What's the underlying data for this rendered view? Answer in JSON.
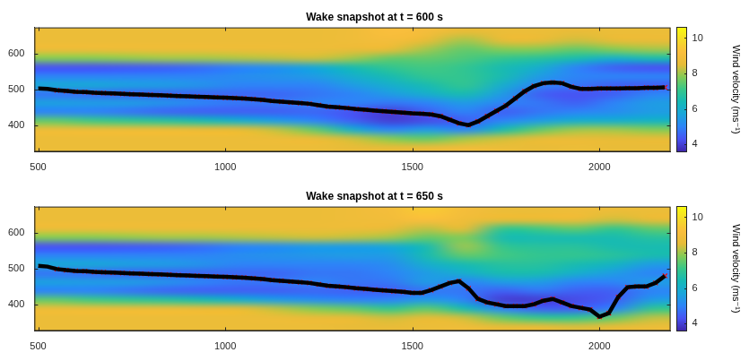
{
  "chart_data": [
    {
      "type": "heatmap",
      "title": "Wake snapshot at t = 600 s",
      "xlim": [
        490,
        2190
      ],
      "xticks": [
        500,
        1000,
        1500,
        2000
      ],
      "ylim": [
        325,
        675
      ],
      "yticks": [
        400,
        500,
        600
      ],
      "grid": false,
      "heatmap": {
        "x": [
          490,
          590,
          690,
          790,
          890,
          990,
          1090,
          1190,
          1290,
          1390,
          1490,
          1590,
          1690,
          1790,
          1890,
          1990,
          2090,
          2190
        ],
        "y": [
          325,
          350,
          375,
          400,
          425,
          450,
          475,
          500,
          525,
          550,
          575,
          600,
          625,
          650,
          675
        ],
        "values": [
          [
            8.7,
            8.7,
            8.7,
            8.7,
            8.7,
            8.7,
            8.7,
            8.7,
            8.6,
            8.5,
            8.6,
            8.8,
            8.7,
            8.6,
            8.7,
            8.6,
            8.6
          ],
          [
            8.7,
            8.7,
            8.7,
            8.7,
            8.7,
            8.7,
            8.7,
            8.6,
            8.3,
            7.8,
            7.5,
            8.0,
            8.3,
            8.5,
            8.6,
            8.5,
            8.5
          ],
          [
            8.7,
            8.7,
            8.7,
            8.7,
            8.6,
            8.5,
            8.2,
            7.5,
            6.0,
            5.0,
            5.5,
            5.0,
            6.5,
            7.5,
            8.0,
            8.0,
            7.8
          ],
          [
            7.5,
            7.2,
            7.0,
            6.8,
            6.5,
            6.0,
            5.5,
            5.0,
            4.5,
            4.0,
            4.2,
            4.5,
            5.0,
            5.5,
            6.0,
            6.0,
            6.2
          ],
          [
            5.0,
            5.0,
            4.8,
            4.6,
            4.5,
            4.5,
            4.5,
            4.6,
            4.3,
            4.0,
            4.5,
            5.0,
            4.5,
            4.8,
            5.0,
            5.2,
            5.5
          ],
          [
            5.6,
            5.5,
            5.5,
            5.3,
            5.0,
            4.8,
            4.8,
            5.0,
            5.0,
            4.8,
            5.0,
            5.5,
            5.0,
            4.8,
            4.5,
            5.0,
            5.5
          ],
          [
            4.8,
            4.7,
            4.6,
            4.6,
            4.6,
            4.6,
            4.6,
            4.8,
            5.0,
            5.5,
            6.0,
            6.5,
            5.5,
            4.5,
            4.3,
            4.5,
            5.0
          ],
          [
            5.8,
            5.8,
            5.6,
            5.5,
            5.3,
            5.0,
            5.0,
            5.0,
            5.5,
            6.0,
            6.5,
            7.0,
            6.0,
            5.0,
            4.8,
            4.5,
            4.5
          ],
          [
            5.0,
            5.0,
            5.0,
            5.0,
            5.0,
            5.2,
            5.3,
            5.5,
            6.0,
            6.5,
            7.0,
            7.0,
            6.5,
            5.5,
            5.0,
            5.0,
            5.0
          ],
          [
            4.3,
            4.3,
            4.4,
            4.5,
            4.7,
            5.0,
            5.3,
            5.8,
            6.5,
            7.0,
            7.2,
            7.0,
            6.5,
            6.0,
            5.0,
            4.5,
            4.3
          ],
          [
            7.8,
            7.8,
            7.9,
            8.0,
            8.0,
            8.1,
            8.2,
            8.3,
            8.0,
            7.5,
            7.5,
            7.3,
            7.0,
            6.8,
            6.5,
            6.0,
            6.5
          ],
          [
            8.7,
            8.7,
            8.7,
            8.7,
            8.7,
            8.7,
            8.7,
            8.7,
            8.6,
            8.5,
            8.0,
            7.5,
            7.8,
            7.8,
            7.5,
            7.8,
            8.0
          ],
          [
            8.7,
            8.7,
            8.7,
            8.7,
            8.7,
            8.7,
            8.7,
            8.7,
            8.8,
            9.0,
            8.5,
            8.0,
            8.5,
            8.5,
            8.3,
            8.5,
            8.6
          ],
          [
            8.7,
            8.7,
            8.7,
            8.7,
            8.7,
            8.7,
            8.7,
            8.7,
            8.8,
            9.2,
            9.0,
            8.5,
            8.7,
            8.7,
            8.6,
            8.7,
            8.7
          ]
        ]
      },
      "colorbar": {
        "label": "Wind velocity (ms⁻¹)",
        "lim": [
          3.6,
          10.6
        ],
        "ticks": [
          4,
          6,
          8,
          10
        ]
      },
      "x": [
        500,
        525,
        550,
        575,
        600,
        625,
        650,
        675,
        700,
        725,
        750,
        775,
        800,
        825,
        850,
        875,
        900,
        925,
        950,
        975,
        1000,
        1025,
        1050,
        1075,
        1100,
        1125,
        1150,
        1175,
        1200,
        1225,
        1250,
        1275,
        1300,
        1325,
        1350,
        1375,
        1400,
        1425,
        1450,
        1475,
        1500,
        1525,
        1550,
        1575,
        1600,
        1625,
        1650,
        1675,
        1700,
        1725,
        1750,
        1775,
        1800,
        1825,
        1850,
        1875,
        1900,
        1925,
        1950,
        1975,
        2000,
        2025,
        2050,
        2075,
        2100,
        2125,
        2150,
        2175
      ],
      "series": [
        {
          "type": "line",
          "color": "#ffffff",
          "line_style": "solid",
          "values": [
            503,
            502,
            498,
            496,
            494,
            493,
            491,
            490,
            489,
            488,
            487,
            486,
            485,
            484,
            483,
            482,
            481,
            480,
            479,
            478,
            477,
            476,
            475,
            473,
            471,
            468,
            466,
            464,
            462,
            460,
            456,
            452,
            450,
            448,
            445,
            443,
            441,
            439,
            437,
            435,
            433,
            432,
            430,
            425,
            415,
            405,
            400,
            410,
            425,
            440,
            455,
            475,
            495,
            510,
            518,
            520,
            518,
            508,
            502,
            502,
            503,
            503,
            503,
            504,
            504,
            505,
            505,
            506
          ]
        },
        {
          "type": "scatter",
          "color": "#ff0000",
          "marker": "x",
          "line_style": "none",
          "values": [
            null,
            null,
            498,
            496,
            494,
            493,
            491,
            490,
            489,
            488,
            487,
            486,
            485,
            484,
            483,
            482,
            481,
            480,
            479,
            478,
            477,
            476,
            475,
            473,
            471,
            468,
            466,
            464,
            462,
            460,
            456,
            452,
            450,
            448,
            445,
            443,
            441,
            439,
            437,
            435,
            433,
            432,
            430,
            425,
            415,
            405,
            400,
            410,
            425,
            440,
            455,
            475,
            495,
            510,
            518,
            520,
            518,
            508,
            502,
            502,
            503,
            503,
            503,
            504,
            504,
            505,
            505,
            506
          ]
        }
      ]
    },
    {
      "type": "heatmap",
      "title": "Wake snapshot at t = 650 s",
      "xlim": [
        490,
        2190
      ],
      "xticks": [
        500,
        1000,
        1500,
        2000
      ],
      "ylim": [
        325,
        675
      ],
      "yticks": [
        400,
        500,
        600
      ],
      "grid": false,
      "heatmap": {
        "x": [
          490,
          590,
          690,
          790,
          890,
          990,
          1090,
          1190,
          1290,
          1390,
          1490,
          1590,
          1690,
          1790,
          1890,
          1990,
          2090,
          2190
        ],
        "y": [
          325,
          350,
          375,
          400,
          425,
          450,
          475,
          500,
          525,
          550,
          575,
          600,
          625,
          650,
          675
        ],
        "values": [
          [
            8.7,
            8.7,
            8.7,
            8.7,
            8.7,
            8.7,
            8.7,
            8.7,
            8.6,
            8.6,
            8.7,
            8.8,
            8.5,
            8.5,
            8.4,
            8.5,
            8.7
          ],
          [
            8.7,
            8.7,
            8.7,
            8.7,
            8.7,
            8.7,
            8.7,
            8.6,
            8.5,
            8.3,
            8.5,
            8.3,
            7.5,
            7.0,
            7.0,
            7.5,
            8.2
          ],
          [
            8.7,
            8.7,
            8.7,
            8.7,
            8.6,
            8.5,
            8.2,
            7.8,
            7.5,
            7.0,
            7.5,
            6.5,
            5.0,
            4.5,
            4.5,
            5.0,
            7.0
          ],
          [
            7.5,
            7.2,
            7.0,
            6.8,
            6.5,
            6.0,
            5.5,
            5.2,
            5.0,
            5.0,
            5.5,
            5.0,
            4.0,
            4.0,
            4.2,
            4.5,
            5.5
          ],
          [
            5.0,
            5.0,
            4.8,
            4.6,
            4.5,
            4.5,
            4.5,
            4.6,
            4.5,
            4.5,
            4.8,
            4.8,
            4.5,
            4.8,
            4.5,
            4.5,
            5.0
          ],
          [
            5.6,
            5.5,
            5.5,
            5.3,
            5.0,
            4.8,
            4.8,
            5.0,
            4.8,
            4.8,
            5.5,
            5.0,
            5.5,
            5.5,
            5.0,
            5.0,
            5.5
          ],
          [
            4.8,
            4.7,
            4.6,
            4.6,
            4.6,
            4.6,
            4.6,
            4.8,
            4.8,
            5.0,
            5.5,
            6.0,
            6.5,
            6.5,
            6.0,
            5.5,
            5.0
          ],
          [
            5.8,
            5.8,
            5.6,
            5.5,
            5.3,
            5.0,
            5.0,
            5.0,
            5.0,
            5.2,
            6.0,
            6.5,
            6.8,
            6.8,
            6.5,
            6.2,
            5.5
          ],
          [
            5.0,
            5.0,
            5.0,
            5.0,
            5.0,
            5.2,
            5.3,
            5.4,
            5.5,
            5.5,
            6.5,
            7.5,
            7.2,
            7.0,
            7.0,
            6.8,
            6.5
          ],
          [
            4.3,
            4.3,
            4.4,
            4.5,
            4.7,
            5.0,
            5.2,
            5.5,
            5.5,
            5.8,
            6.5,
            8.0,
            7.0,
            6.8,
            6.8,
            6.5,
            6.5
          ],
          [
            7.8,
            7.8,
            7.9,
            8.0,
            8.0,
            8.1,
            8.2,
            8.3,
            8.2,
            8.0,
            7.5,
            7.8,
            6.5,
            6.5,
            6.5,
            6.5,
            6.8
          ],
          [
            8.7,
            8.7,
            8.7,
            8.7,
            8.7,
            8.7,
            8.7,
            8.7,
            8.7,
            8.6,
            8.2,
            8.5,
            7.0,
            7.2,
            7.5,
            7.0,
            7.5
          ],
          [
            8.7,
            8.7,
            8.7,
            8.7,
            8.7,
            8.7,
            8.7,
            8.7,
            8.8,
            8.9,
            9.2,
            8.8,
            8.5,
            8.5,
            8.6,
            8.3,
            8.5
          ],
          [
            8.7,
            8.7,
            8.7,
            8.7,
            8.7,
            8.7,
            8.7,
            8.7,
            8.8,
            9.0,
            9.5,
            9.0,
            8.7,
            8.7,
            8.8,
            8.7,
            8.7
          ]
        ]
      },
      "colorbar": {
        "label": "Wind velocity (ms⁻¹)",
        "lim": [
          3.6,
          10.6
        ],
        "ticks": [
          4,
          6,
          8,
          10
        ]
      },
      "x": [
        500,
        525,
        550,
        575,
        600,
        625,
        650,
        675,
        700,
        725,
        750,
        775,
        800,
        825,
        850,
        875,
        900,
        925,
        950,
        975,
        1000,
        1025,
        1050,
        1075,
        1100,
        1125,
        1150,
        1175,
        1200,
        1225,
        1250,
        1275,
        1300,
        1325,
        1350,
        1375,
        1400,
        1425,
        1450,
        1475,
        1500,
        1525,
        1550,
        1575,
        1600,
        1625,
        1650,
        1675,
        1700,
        1725,
        1750,
        1775,
        1800,
        1825,
        1850,
        1875,
        1900,
        1925,
        1950,
        1975,
        2000,
        2025,
        2050,
        2075,
        2100,
        2125,
        2150,
        2175
      ],
      "series": [
        {
          "type": "line",
          "color": "#ffffff",
          "line_style": "solid",
          "values": [
            508,
            506,
            499,
            496,
            494,
            493,
            491,
            490,
            489,
            488,
            487,
            486,
            485,
            484,
            483,
            482,
            481,
            480,
            479,
            478,
            477,
            476,
            475,
            473,
            471,
            468,
            466,
            464,
            462,
            460,
            456,
            452,
            450,
            448,
            445,
            443,
            441,
            439,
            437,
            435,
            432,
            432,
            440,
            450,
            460,
            465,
            445,
            415,
            405,
            400,
            395,
            395,
            395,
            400,
            410,
            415,
            405,
            395,
            390,
            385,
            365,
            375,
            420,
            448,
            450,
            450,
            460,
            480
          ]
        },
        {
          "type": "scatter",
          "color": "#ff0000",
          "marker": "x",
          "line_style": "none",
          "values": [
            null,
            null,
            499,
            496,
            494,
            493,
            491,
            490,
            489,
            488,
            487,
            486,
            485,
            484,
            483,
            482,
            481,
            480,
            479,
            478,
            477,
            476,
            475,
            473,
            471,
            468,
            466,
            464,
            462,
            460,
            456,
            452,
            450,
            448,
            445,
            443,
            441,
            439,
            437,
            435,
            432,
            432,
            440,
            450,
            460,
            465,
            445,
            415,
            405,
            400,
            395,
            395,
            395,
            400,
            410,
            415,
            405,
            395,
            390,
            385,
            365,
            375,
            420,
            448,
            450,
            450,
            460,
            480
          ]
        }
      ]
    }
  ]
}
